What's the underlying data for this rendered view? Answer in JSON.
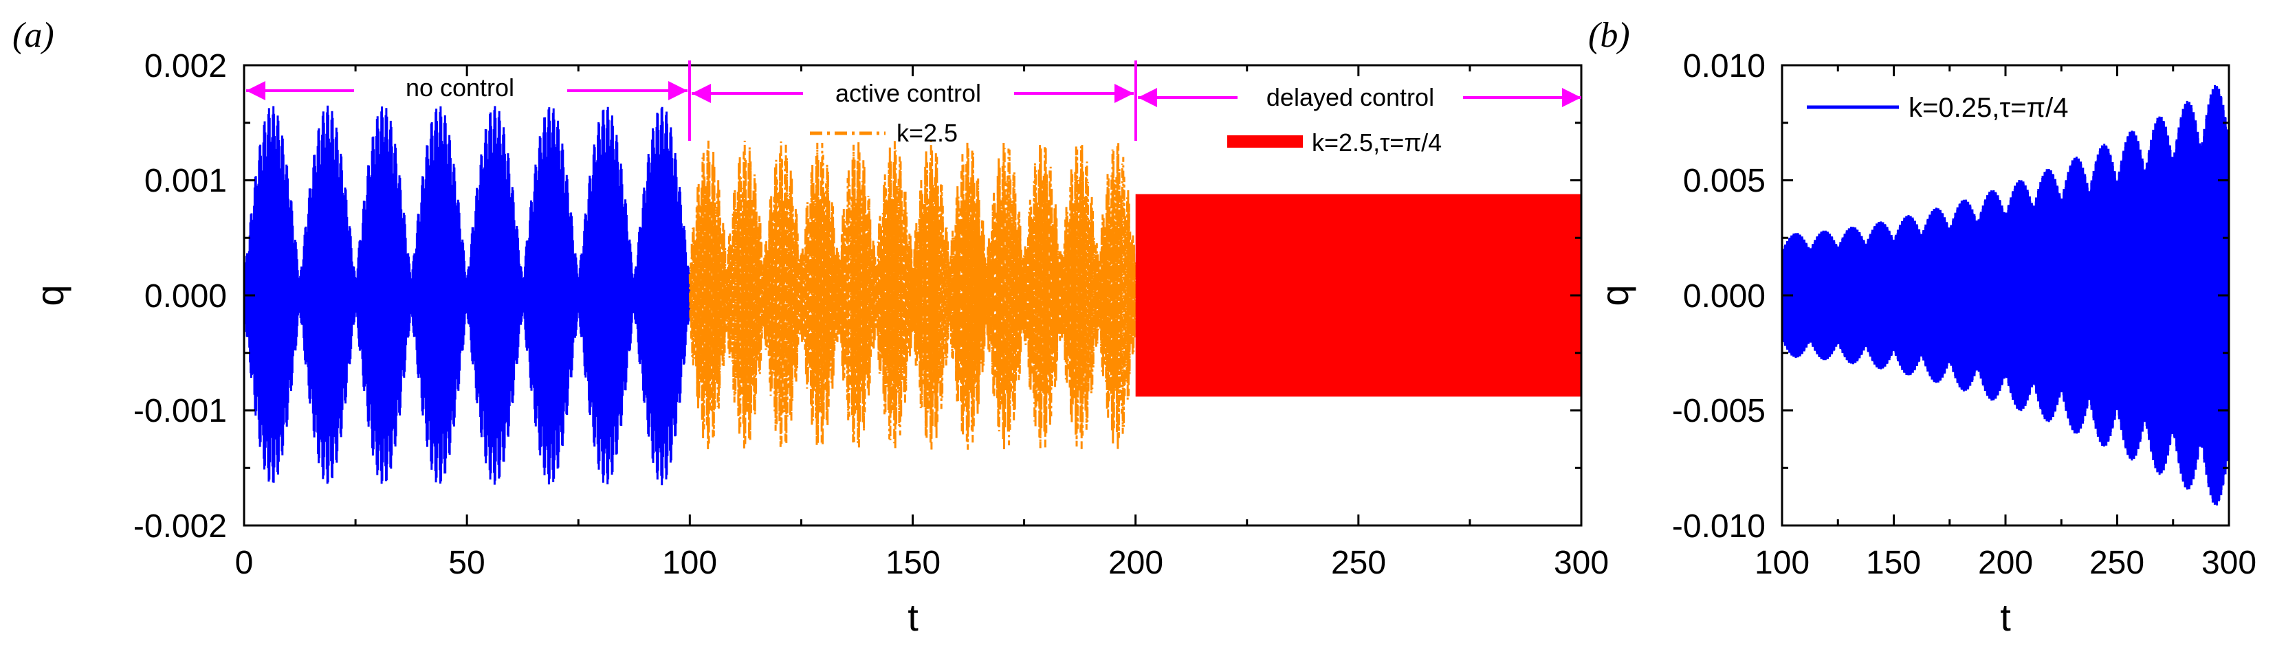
{
  "chart_data": [
    {
      "panel_label": "(a)",
      "type": "line",
      "xlabel": "t",
      "ylabel": "q",
      "xlim": [
        0,
        300
      ],
      "ylim": [
        -0.002,
        0.002
      ],
      "x_ticks": [
        0,
        50,
        100,
        150,
        200,
        250,
        300
      ],
      "x_tick_labels": [
        "0",
        "50",
        "100",
        "150",
        "200",
        "250",
        "300"
      ],
      "y_ticks": [
        -0.002,
        -0.001,
        0.0,
        0.001,
        0.002
      ],
      "y_tick_labels": [
        "-0.002",
        "-0.001",
        "0.000",
        "0.001",
        "0.002"
      ],
      "grid": false,
      "segments": [
        {
          "name": "no control",
          "t_range": [
            0,
            100
          ],
          "color": "#0000ff",
          "style": "solid",
          "amplitude_max": 0.00165,
          "beat_period": 12.5
        },
        {
          "name": "active control",
          "legend": "k=2.5",
          "t_range": [
            100,
            200
          ],
          "color": "#ff8c00",
          "style": "dash-dot",
          "amplitude_max": 0.00135,
          "beat_period": 8.33
        },
        {
          "name": "delayed control",
          "legend": "k=2.5,τ=π/4",
          "t_range": [
            200,
            300
          ],
          "color": "#ff0000",
          "style": "solid",
          "amplitude_max": 0.00088
        }
      ],
      "annotations": {
        "no_control": "no control",
        "active_control": "active control",
        "delayed_control": "delayed control"
      },
      "arrow_color": "#ff00ff",
      "legend": [
        "k=2.5",
        "k=2.5,τ=π/4"
      ]
    },
    {
      "panel_label": "(b)",
      "type": "line",
      "xlabel": "t",
      "ylabel": "q",
      "xlim": [
        100,
        300
      ],
      "ylim": [
        -0.01,
        0.01
      ],
      "x_ticks": [
        100,
        150,
        200,
        250,
        300
      ],
      "x_tick_labels": [
        "100",
        "150",
        "200",
        "250",
        "300"
      ],
      "y_ticks": [
        -0.01,
        -0.005,
        0.0,
        0.005,
        0.01
      ],
      "y_tick_labels": [
        "-0.010",
        "-0.005",
        "0.000",
        "0.005",
        "0.010"
      ],
      "grid": false,
      "series": [
        {
          "name": "k=0.25,τ=π/4",
          "color": "#0000ff",
          "t_range": [
            100,
            300
          ],
          "amplitude_start": 0.0027,
          "amplitude_end": 0.0095,
          "beat_period": 12.5
        }
      ],
      "legend": [
        "k=0.25,τ=π/4"
      ]
    }
  ]
}
